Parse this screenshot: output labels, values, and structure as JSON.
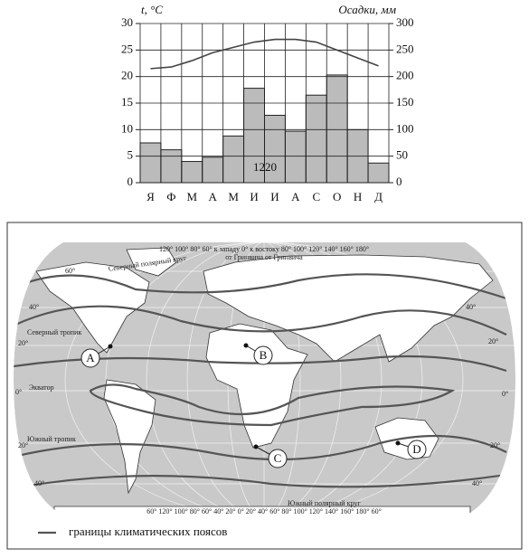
{
  "chart_data": {
    "type": "climatogram",
    "y_label": "t, °C",
    "y2_label": "Осадки, мм",
    "categories": [
      "Я",
      "Ф",
      "М",
      "А",
      "М",
      "И",
      "И",
      "А",
      "С",
      "О",
      "Н",
      "Д"
    ],
    "series": [
      {
        "type": "line",
        "color": "#444444",
        "values": [
          21.5,
          21.8,
          23,
          24.5,
          25.5,
          26.5,
          27,
          27,
          26.5,
          25,
          23.5,
          22
        ]
      },
      {
        "type": "bar",
        "axis": "y2",
        "color": "#bbbbbb",
        "values": [
          75,
          62,
          40,
          48,
          88,
          178,
          127,
          97,
          165,
          203,
          100,
          37
        ]
      }
    ],
    "annotation": "1220",
    "ylim": [
      0,
      30
    ],
    "yticks": [
      0,
      5,
      10,
      15,
      20,
      25,
      30
    ],
    "y2lim": [
      0,
      300
    ],
    "y2ticks": [
      0,
      50,
      100,
      150,
      200,
      250,
      300
    ],
    "grid": true
  },
  "map": {
    "top_longitudes": "120° 100° 80° 60° к западу 0° к востоку 80° 100° 120° 140° 160° 180°",
    "greenwich": "от Гринвича  от Гринвича",
    "arctic_circle": "Северный полярный круг",
    "tropic_north": "Северный тропик",
    "equator": "Экватор",
    "tropic_south": "Южный тропик",
    "antarctic_circle": "Южный полярный круг",
    "bottom_longitudes": "60° 120° 100° 80° 60° 40° 20° 0° 20° 40° 60° 80° 100° 120° 140° 160° 180° 60°",
    "lat_labels": [
      "60°",
      "40°",
      "20°",
      "0°",
      "20°",
      "40°",
      "40°",
      "20°",
      "0°",
      "20°",
      "40°"
    ],
    "points": [
      "A",
      "B",
      "C",
      "D"
    ],
    "legend": "границы климатических поясов"
  }
}
